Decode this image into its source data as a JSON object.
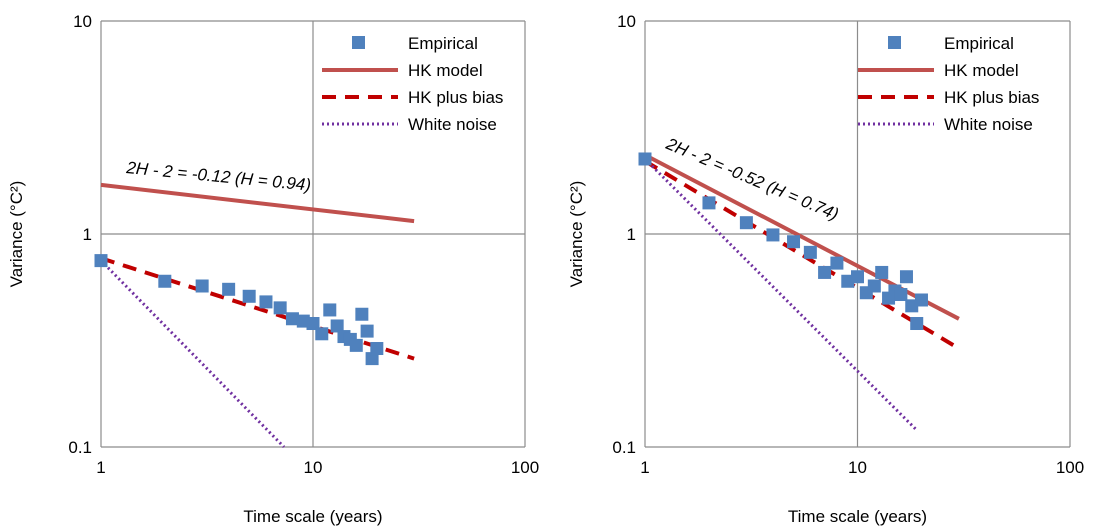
{
  "chart_data": [
    {
      "type": "scatter",
      "xscale": "log",
      "yscale": "log",
      "xlim": [
        1,
        100
      ],
      "ylim": [
        0.1,
        10
      ],
      "x_ticks": [
        "1",
        "10",
        "100"
      ],
      "y_ticks": [
        "0.1",
        "1",
        "10"
      ],
      "xlabel": "Time scale (years)",
      "ylabel": "Variance (°C²)",
      "grid": true,
      "legend_position": "top-right",
      "annotation": "2H - 2 = -0.12 (H = 0.94)",
      "series": [
        {
          "name": "Empirical",
          "style": "markers",
          "color": "#4F81BD",
          "x": [
            1,
            2,
            3,
            4,
            5,
            6,
            7,
            8,
            9,
            10,
            11,
            12,
            13,
            14,
            15,
            16,
            17,
            18,
            19,
            20
          ],
          "y": [
            0.75,
            0.6,
            0.57,
            0.55,
            0.51,
            0.48,
            0.45,
            0.4,
            0.39,
            0.38,
            0.34,
            0.44,
            0.37,
            0.33,
            0.32,
            0.3,
            0.42,
            0.35,
            0.26,
            0.29
          ]
        },
        {
          "name": "HK model",
          "style": "solid",
          "color": "#C0504D",
          "x": [
            1,
            30
          ],
          "y": [
            1.7,
            1.15
          ]
        },
        {
          "name": "HK plus bias",
          "style": "dashed",
          "color": "#C00000",
          "x": [
            1,
            30
          ],
          "y": [
            0.77,
            0.26
          ]
        },
        {
          "name": "White noise",
          "style": "dotted",
          "color": "#7030A0",
          "x": [
            1,
            7.3
          ],
          "y": [
            0.75,
            0.1
          ]
        }
      ]
    },
    {
      "type": "scatter",
      "xscale": "log",
      "yscale": "log",
      "xlim": [
        1,
        100
      ],
      "ylim": [
        0.1,
        10
      ],
      "x_ticks": [
        "1",
        "10",
        "100"
      ],
      "y_ticks": [
        "0.1",
        "1",
        "10"
      ],
      "xlabel": "Time scale (years)",
      "ylabel": "Variance (°C²)",
      "grid": true,
      "legend_position": "top-right",
      "annotation": "2H - 2 = -0.52 (H = 0.74)",
      "series": [
        {
          "name": "Empirical",
          "style": "markers",
          "color": "#4F81BD",
          "x": [
            1,
            2,
            3,
            4,
            5,
            6,
            7,
            8,
            9,
            10,
            11,
            12,
            13,
            14,
            15,
            16,
            17,
            18,
            19,
            20
          ],
          "y": [
            2.25,
            1.4,
            1.13,
            0.99,
            0.92,
            0.82,
            0.66,
            0.73,
            0.6,
            0.63,
            0.53,
            0.57,
            0.66,
            0.5,
            0.54,
            0.52,
            0.63,
            0.46,
            0.38,
            0.49
          ]
        },
        {
          "name": "HK model",
          "style": "solid",
          "color": "#C0504D",
          "x": [
            1,
            30
          ],
          "y": [
            2.35,
            0.4
          ]
        },
        {
          "name": "HK plus bias",
          "style": "dashed",
          "color": "#C00000",
          "x": [
            1,
            30
          ],
          "y": [
            2.2,
            0.29
          ]
        },
        {
          "name": "White noise",
          "style": "dotted",
          "color": "#7030A0",
          "x": [
            1,
            19
          ],
          "y": [
            2.25,
            0.12
          ]
        }
      ]
    }
  ]
}
